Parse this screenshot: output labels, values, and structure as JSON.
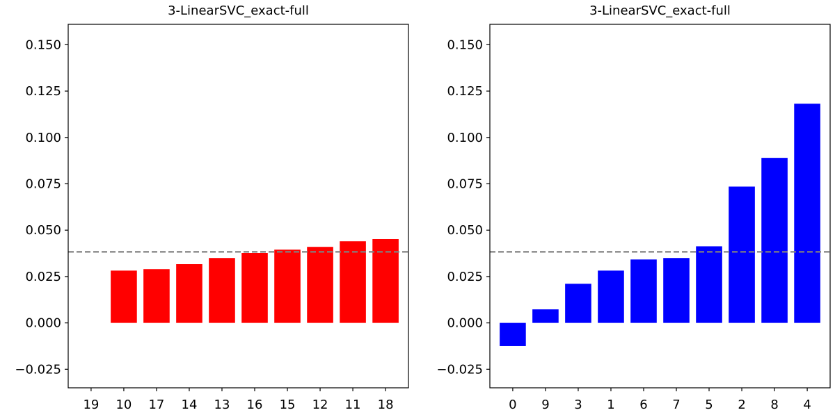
{
  "chart_data": [
    {
      "type": "bar",
      "title": "3-LinearSVC_exact-full",
      "xlabel": "",
      "ylabel": "",
      "categories": [
        "19",
        "10",
        "17",
        "14",
        "13",
        "16",
        "15",
        "12",
        "11",
        "18"
      ],
      "values": [
        0.0,
        0.0282,
        0.029,
        0.0317,
        0.035,
        0.0377,
        0.0395,
        0.041,
        0.044,
        0.0452
      ],
      "bar_color": "#ff0000",
      "reference_line": {
        "value": 0.0383,
        "color": "#808080",
        "style": "dashed"
      },
      "ylim": [
        -0.035,
        0.161
      ],
      "yticks": [
        "−0.025",
        "0.000",
        "0.025",
        "0.050",
        "0.075",
        "0.100",
        "0.125",
        "0.150"
      ],
      "ytick_values": [
        -0.025,
        0.0,
        0.025,
        0.05,
        0.075,
        0.1,
        0.125,
        0.15
      ],
      "grid": false
    },
    {
      "type": "bar",
      "title": "3-LinearSVC_exact-full",
      "xlabel": "",
      "ylabel": "",
      "categories": [
        "0",
        "9",
        "3",
        "1",
        "6",
        "7",
        "5",
        "2",
        "8",
        "4"
      ],
      "values": [
        -0.0125,
        0.0073,
        0.0211,
        0.0282,
        0.0342,
        0.035,
        0.0413,
        0.0735,
        0.089,
        0.1182
      ],
      "bar_color": "#0000ff",
      "reference_line": {
        "value": 0.0383,
        "color": "#808080",
        "style": "dashed"
      },
      "ylim": [
        -0.035,
        0.161
      ],
      "yticks": [
        "−0.025",
        "0.000",
        "0.025",
        "0.050",
        "0.075",
        "0.100",
        "0.125",
        "0.150"
      ],
      "ytick_values": [
        -0.025,
        0.0,
        0.025,
        0.05,
        0.075,
        0.1,
        0.125,
        0.15
      ],
      "grid": false
    }
  ]
}
